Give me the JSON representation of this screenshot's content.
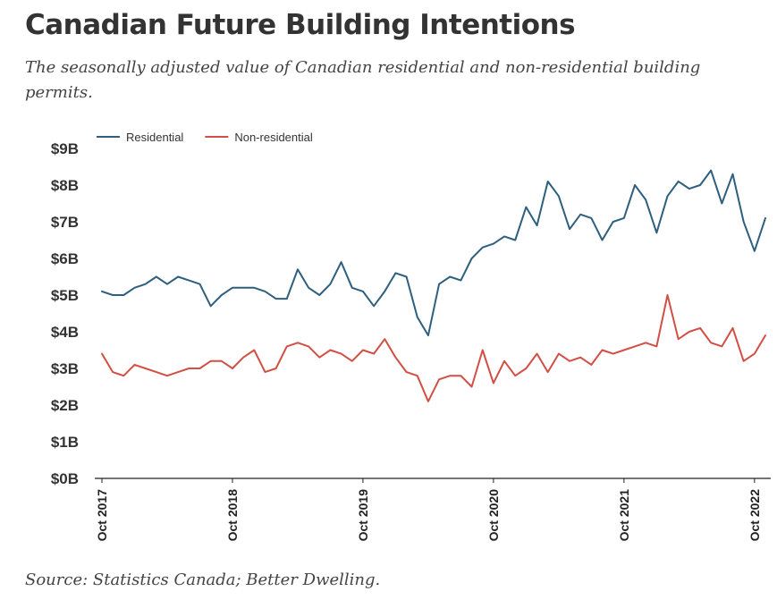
{
  "header": {
    "title": "Canadian Future Building Intentions",
    "subtitle": "The seasonally adjusted value of Canadian residential and non-residential building permits."
  },
  "footer": {
    "source": "Source: Statistics Canada; Better Dwelling."
  },
  "colors": {
    "residential": "#2e5f7e",
    "non_residential": "#d24f45",
    "axis": "#222222"
  },
  "chart_data": {
    "type": "line",
    "title": "Canadian Future Building Intentions",
    "xlabel": "",
    "ylabel": "",
    "ylim": [
      0,
      9
    ],
    "grid": false,
    "legend": "top-left",
    "y_ticks": [
      "$0B",
      "$1B",
      "$2B",
      "$3B",
      "$4B",
      "$5B",
      "$6B",
      "$7B",
      "$8B",
      "$9B"
    ],
    "x_ticks": [
      "Oct 2017",
      "Oct 2018",
      "Oct 2019",
      "Oct 2020",
      "Oct 2021",
      "Oct 2022"
    ],
    "x_tick_index": [
      0,
      12,
      24,
      36,
      48,
      60
    ],
    "x": [
      "Oct 2017",
      "Nov 2017",
      "Dec 2017",
      "Jan 2018",
      "Feb 2018",
      "Mar 2018",
      "Apr 2018",
      "May 2018",
      "Jun 2018",
      "Jul 2018",
      "Aug 2018",
      "Sep 2018",
      "Oct 2018",
      "Nov 2018",
      "Dec 2018",
      "Jan 2019",
      "Feb 2019",
      "Mar 2019",
      "Apr 2019",
      "May 2019",
      "Jun 2019",
      "Jul 2019",
      "Aug 2019",
      "Sep 2019",
      "Oct 2019",
      "Nov 2019",
      "Dec 2019",
      "Jan 2020",
      "Feb 2020",
      "Mar 2020",
      "Apr 2020",
      "May 2020",
      "Jun 2020",
      "Jul 2020",
      "Aug 2020",
      "Sep 2020",
      "Oct 2020",
      "Nov 2020",
      "Dec 2020",
      "Jan 2021",
      "Feb 2021",
      "Mar 2021",
      "Apr 2021",
      "May 2021",
      "Jun 2021",
      "Jul 2021",
      "Aug 2021",
      "Sep 2021",
      "Oct 2021",
      "Nov 2021",
      "Dec 2021",
      "Jan 2022",
      "Feb 2022",
      "Mar 2022",
      "Apr 2022",
      "May 2022",
      "Jun 2022",
      "Jul 2022",
      "Aug 2022",
      "Sep 2022",
      "Oct 2022",
      "Nov 2022"
    ],
    "series": [
      {
        "name": "Residential",
        "color": "#2e5f7e",
        "values": [
          5.1,
          5.0,
          5.0,
          5.2,
          5.3,
          5.5,
          5.3,
          5.5,
          5.4,
          5.3,
          4.7,
          5.0,
          5.2,
          5.2,
          5.2,
          5.1,
          4.9,
          4.9,
          5.7,
          5.2,
          5.0,
          5.3,
          5.9,
          5.2,
          5.1,
          4.7,
          5.1,
          5.6,
          5.5,
          4.4,
          3.9,
          5.3,
          5.5,
          5.4,
          6.0,
          6.3,
          6.4,
          6.6,
          6.5,
          7.4,
          6.9,
          8.1,
          7.7,
          6.8,
          7.2,
          7.1,
          6.5,
          7.0,
          7.1,
          8.0,
          7.6,
          6.7,
          7.7,
          8.1,
          7.9,
          8.0,
          8.4,
          7.5,
          8.3,
          7.0,
          6.2,
          7.1
        ]
      },
      {
        "name": "Non-residential",
        "color": "#d24f45",
        "values": [
          3.4,
          2.9,
          2.8,
          3.1,
          3.0,
          2.9,
          2.8,
          2.9,
          3.0,
          3.0,
          3.2,
          3.2,
          3.0,
          3.3,
          3.5,
          2.9,
          3.0,
          3.6,
          3.7,
          3.6,
          3.3,
          3.5,
          3.4,
          3.2,
          3.5,
          3.4,
          3.8,
          3.3,
          2.9,
          2.8,
          2.1,
          2.7,
          2.8,
          2.8,
          2.5,
          3.5,
          2.6,
          3.2,
          2.8,
          3.0,
          3.4,
          2.9,
          3.4,
          3.2,
          3.3,
          3.1,
          3.5,
          3.4,
          3.5,
          3.6,
          3.7,
          3.6,
          5.0,
          3.8,
          4.0,
          4.1,
          3.7,
          3.6,
          4.1,
          3.2,
          3.4,
          3.9
        ]
      }
    ]
  }
}
